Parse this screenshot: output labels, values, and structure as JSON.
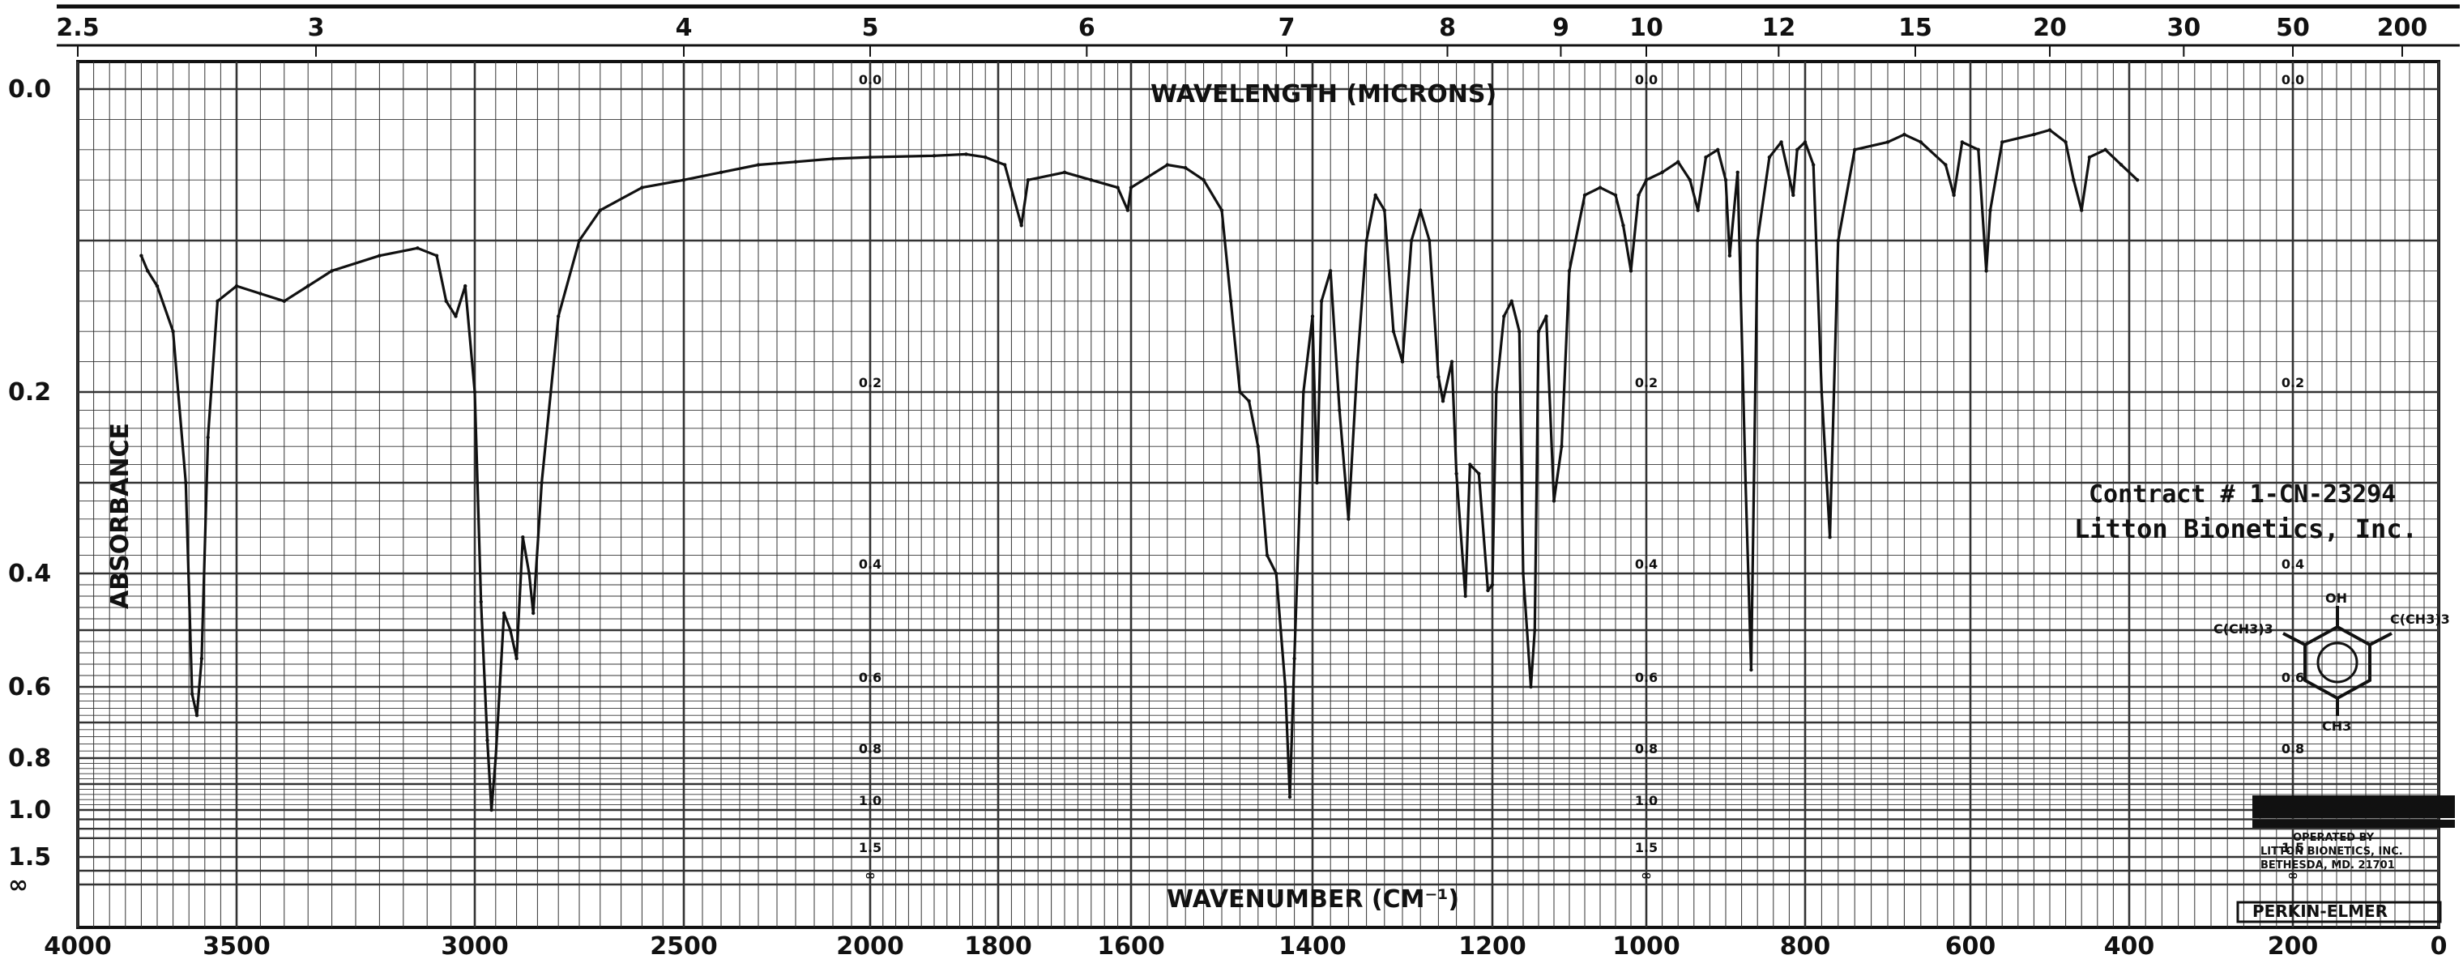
{
  "chart_data": {
    "type": "line",
    "title": "",
    "wavelength_axis": {
      "label": "WAVELENGTH (MICRONS)",
      "tick_labels": [
        "2.5",
        "3",
        "4",
        "5",
        "6",
        "7",
        "8",
        "9",
        "10",
        "12",
        "15",
        "20",
        "30",
        "50",
        "200"
      ]
    },
    "wavenumber_axis": {
      "label": "WAVENUMBER (CM⁻¹)",
      "tick_labels": [
        "4000",
        "3500",
        "3000",
        "2500",
        "2000",
        "1800",
        "1600",
        "1400",
        "1200",
        "1000",
        "800",
        "600",
        "400",
        "200",
        "0"
      ]
    },
    "y_axis": {
      "label": "ABSORBANCE",
      "tick_labels": [
        "0.0",
        "0.2",
        "0.4",
        "0.6",
        "0.8",
        "1.0",
        "1.5",
        "∞"
      ],
      "scale": "absorbance (nonlinear chart paper)",
      "inner_labels": [
        "0.0",
        "0.2",
        "0.4",
        "0.6",
        "0.8",
        "1.0",
        "1.5",
        "∞"
      ]
    },
    "grid": true,
    "series": [
      {
        "x_unit": "cm-1",
        "y_unit": "absorbance",
        "points": [
          [
            3800,
            0.11
          ],
          [
            3780,
            0.12
          ],
          [
            3750,
            0.13
          ],
          [
            3700,
            0.16
          ],
          [
            3660,
            0.3
          ],
          [
            3640,
            0.62
          ],
          [
            3625,
            0.68
          ],
          [
            3610,
            0.55
          ],
          [
            3590,
            0.25
          ],
          [
            3560,
            0.14
          ],
          [
            3500,
            0.13
          ],
          [
            3450,
            0.135
          ],
          [
            3400,
            0.14
          ],
          [
            3350,
            0.13
          ],
          [
            3300,
            0.12
          ],
          [
            3200,
            0.11
          ],
          [
            3120,
            0.105
          ],
          [
            3080,
            0.11
          ],
          [
            3060,
            0.14
          ],
          [
            3040,
            0.15
          ],
          [
            3020,
            0.13
          ],
          [
            3000,
            0.2
          ],
          [
            2985,
            0.45
          ],
          [
            2970,
            0.75
          ],
          [
            2960,
            1.0
          ],
          [
            2950,
            0.8
          ],
          [
            2930,
            0.47
          ],
          [
            2915,
            0.5
          ],
          [
            2900,
            0.55
          ],
          [
            2885,
            0.36
          ],
          [
            2870,
            0.4
          ],
          [
            2860,
            0.47
          ],
          [
            2840,
            0.3
          ],
          [
            2800,
            0.15
          ],
          [
            2750,
            0.1
          ],
          [
            2700,
            0.08
          ],
          [
            2600,
            0.065
          ],
          [
            2500,
            0.06
          ],
          [
            2400,
            0.055
          ],
          [
            2300,
            0.05
          ],
          [
            2200,
            0.048
          ],
          [
            2100,
            0.046
          ],
          [
            2000,
            0.045
          ],
          [
            1900,
            0.044
          ],
          [
            1850,
            0.043
          ],
          [
            1820,
            0.045
          ],
          [
            1790,
            0.05
          ],
          [
            1765,
            0.09
          ],
          [
            1755,
            0.06
          ],
          [
            1700,
            0.055
          ],
          [
            1660,
            0.06
          ],
          [
            1620,
            0.065
          ],
          [
            1605,
            0.08
          ],
          [
            1600,
            0.065
          ],
          [
            1560,
            0.05
          ],
          [
            1540,
            0.052
          ],
          [
            1520,
            0.06
          ],
          [
            1500,
            0.08
          ],
          [
            1490,
            0.14
          ],
          [
            1480,
            0.2
          ],
          [
            1470,
            0.21
          ],
          [
            1460,
            0.26
          ],
          [
            1450,
            0.38
          ],
          [
            1440,
            0.4
          ],
          [
            1430,
            0.6
          ],
          [
            1425,
            0.95
          ],
          [
            1420,
            0.55
          ],
          [
            1410,
            0.2
          ],
          [
            1400,
            0.15
          ],
          [
            1395,
            0.3
          ],
          [
            1390,
            0.14
          ],
          [
            1380,
            0.12
          ],
          [
            1370,
            0.22
          ],
          [
            1360,
            0.34
          ],
          [
            1350,
            0.18
          ],
          [
            1340,
            0.1
          ],
          [
            1330,
            0.07
          ],
          [
            1320,
            0.08
          ],
          [
            1310,
            0.16
          ],
          [
            1300,
            0.18
          ],
          [
            1290,
            0.1
          ],
          [
            1280,
            0.08
          ],
          [
            1270,
            0.1
          ],
          [
            1260,
            0.19
          ],
          [
            1255,
            0.21
          ],
          [
            1245,
            0.18
          ],
          [
            1240,
            0.29
          ],
          [
            1230,
            0.44
          ],
          [
            1225,
            0.28
          ],
          [
            1215,
            0.29
          ],
          [
            1205,
            0.43
          ],
          [
            1200,
            0.42
          ],
          [
            1195,
            0.2
          ],
          [
            1185,
            0.15
          ],
          [
            1175,
            0.14
          ],
          [
            1165,
            0.16
          ],
          [
            1160,
            0.4
          ],
          [
            1150,
            0.6
          ],
          [
            1145,
            0.5
          ],
          [
            1140,
            0.16
          ],
          [
            1130,
            0.15
          ],
          [
            1120,
            0.32
          ],
          [
            1110,
            0.26
          ],
          [
            1100,
            0.12
          ],
          [
            1080,
            0.07
          ],
          [
            1060,
            0.065
          ],
          [
            1040,
            0.07
          ],
          [
            1030,
            0.09
          ],
          [
            1020,
            0.12
          ],
          [
            1010,
            0.07
          ],
          [
            1000,
            0.06
          ],
          [
            980,
            0.055
          ],
          [
            960,
            0.048
          ],
          [
            945,
            0.06
          ],
          [
            935,
            0.08
          ],
          [
            925,
            0.045
          ],
          [
            910,
            0.04
          ],
          [
            900,
            0.06
          ],
          [
            895,
            0.11
          ],
          [
            885,
            0.055
          ],
          [
            875,
            0.3
          ],
          [
            868,
            0.57
          ],
          [
            860,
            0.1
          ],
          [
            845,
            0.045
          ],
          [
            830,
            0.035
          ],
          [
            815,
            0.07
          ],
          [
            810,
            0.04
          ],
          [
            800,
            0.035
          ],
          [
            790,
            0.05
          ],
          [
            780,
            0.2
          ],
          [
            770,
            0.36
          ],
          [
            760,
            0.1
          ],
          [
            740,
            0.04
          ],
          [
            700,
            0.035
          ],
          [
            680,
            0.03
          ],
          [
            660,
            0.035
          ],
          [
            630,
            0.05
          ],
          [
            620,
            0.07
          ],
          [
            610,
            0.035
          ],
          [
            590,
            0.04
          ],
          [
            580,
            0.12
          ],
          [
            575,
            0.08
          ],
          [
            560,
            0.035
          ],
          [
            520,
            0.03
          ],
          [
            500,
            0.027
          ],
          [
            480,
            0.035
          ],
          [
            470,
            0.06
          ],
          [
            460,
            0.08
          ],
          [
            450,
            0.045
          ],
          [
            430,
            0.04
          ],
          [
            410,
            0.05
          ],
          [
            390,
            0.06
          ]
        ]
      }
    ]
  },
  "annotations": {
    "contract": "Contract # 1-CN-23294",
    "company": "Litton Bionetics, Inc.",
    "operated_by": "OPERATED BY",
    "company_small": "LITTON BIONETICS, INC.",
    "location": "BETHESDA, MD. 21701",
    "manufacturer": "PERKIN-ELMER",
    "structure_substituents": [
      "OH",
      "CH3",
      "C(CH3)3"
    ]
  },
  "colors": {
    "grid": "#333333",
    "trace": "#111111",
    "background": "#ffffff"
  }
}
